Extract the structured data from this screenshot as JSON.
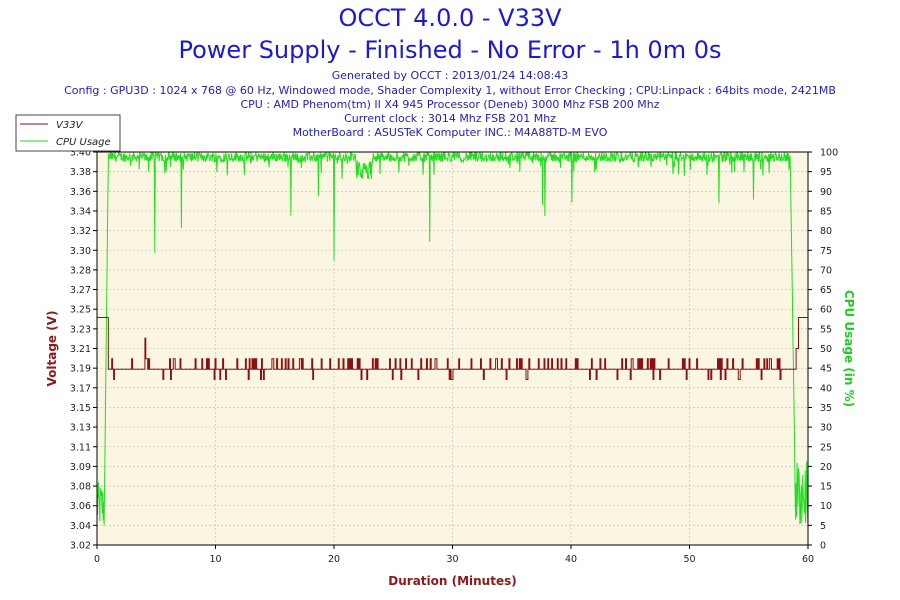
{
  "header": {
    "title": "OCCT 4.0.0 - V33V",
    "subtitle": "Power Supply - Finished - No Error - 1h 0m 0s",
    "info_lines": [
      "Generated by OCCT : 2013/01/24 14:08:43",
      "Config : GPU3D : 1024 x 768 @ 60 Hz, Windowed mode, Shader Complexity 1, without Error Checking ; CPU:Linpack : 64bits mode, 2421MB",
      "CPU : AMD Phenom(tm) II X4 945 Processor (Deneb) 3000 Mhz FSB 200 Mhz",
      "Current clock : 3014 Mhz FSB 201 Mhz",
      "MotherBoard : ASUSTeK Computer INC.: M4A88TD-M EVO"
    ]
  },
  "colors": {
    "voltage": "#8b1010",
    "cpu": "#22dd22",
    "plot_bg": "#fbf6e2",
    "grid": "#bbbbbb",
    "axis_label_left": "#8b1a1a",
    "axis_label_right": "#22cc22",
    "axis_label_bottom": "#8b1a1a"
  },
  "chart_data": {
    "type": "line",
    "xlabel": "Duration (Minutes)",
    "ylabel_left": "Voltage (V)",
    "ylabel_right": "CPU Usage (in %)",
    "xlim": [
      0,
      60
    ],
    "ylim_left": [
      3.02,
      3.4
    ],
    "ylim_right": [
      0,
      100
    ],
    "x_ticks": [
      "0",
      "10",
      "20",
      "30",
      "40",
      "50",
      "60"
    ],
    "y_left_ticks": [
      "3.02",
      "3.04",
      "3.06",
      "3.08",
      "3.09",
      "3.11",
      "3.13",
      "3.15",
      "3.17",
      "3.19",
      "3.21",
      "3.23",
      "3.25",
      "3.27",
      "3.28",
      "3.30",
      "3.32",
      "3.34",
      "3.36",
      "3.38",
      "3.40"
    ],
    "y_right_ticks": [
      "0",
      "5",
      "10",
      "15",
      "20",
      "25",
      "30",
      "35",
      "40",
      "45",
      "50",
      "55",
      "60",
      "65",
      "70",
      "75",
      "80",
      "85",
      "90",
      "95",
      "100"
    ],
    "grid": true,
    "legend_placement": "top-left",
    "series": [
      {
        "name": "V33V",
        "axis": "left",
        "baseline": 3.19,
        "upper_level": 3.2,
        "lower_level": 3.18,
        "start_level": 3.24,
        "end_level": 3.24,
        "x": [
          0,
          0.8,
          1.0,
          4.0,
          4.1,
          10,
          20,
          30,
          40,
          50,
          58.8,
          59.1,
          60
        ],
        "values": [
          3.24,
          3.24,
          3.19,
          3.19,
          3.22,
          3.19,
          3.19,
          3.19,
          3.19,
          3.19,
          3.19,
          3.24,
          3.24
        ]
      },
      {
        "name": "CPU Usage",
        "axis": "right",
        "x": [
          0,
          0.6,
          0.9,
          1.2,
          5,
          10,
          20,
          22.5,
          30,
          40,
          50,
          58.5,
          59.0,
          59.3,
          60
        ],
        "values": [
          5,
          8,
          95,
          99,
          99,
          99,
          99,
          96,
          99,
          99,
          99,
          99,
          5,
          8,
          8
        ]
      }
    ]
  }
}
